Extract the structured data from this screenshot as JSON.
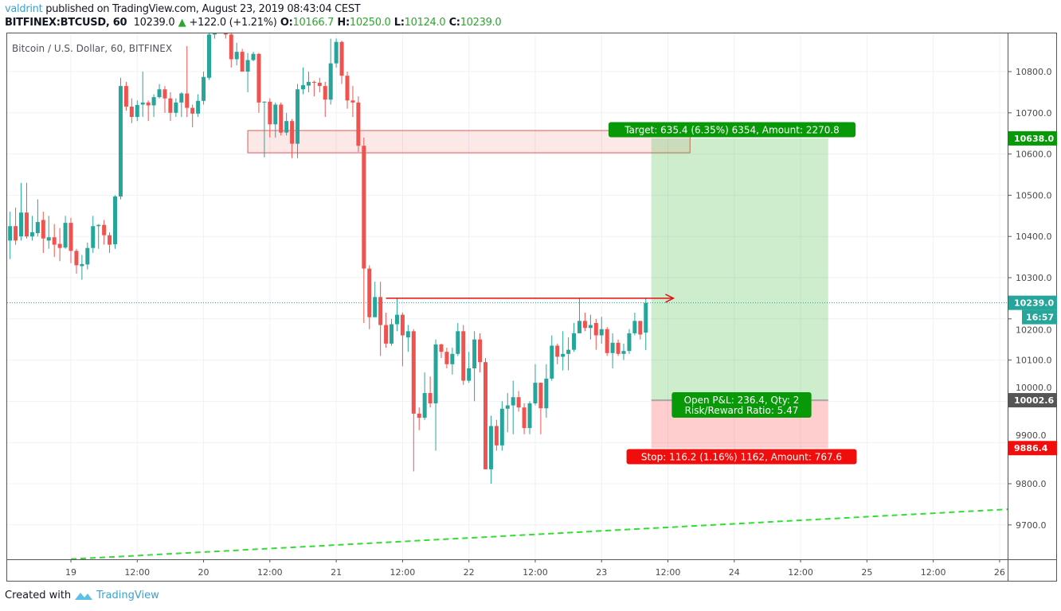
{
  "header": {
    "author": "valdrint",
    "published": "published on TradingView.com, August 23, 2019 08:43:04 CEST",
    "symbol": "BITFINEX:BTCUSD, 60",
    "last": "10239.0",
    "change": "+122.0 (+1.21%)",
    "o_label": "O:",
    "o": "10166.7",
    "h_label": "H:",
    "h": "10250.0",
    "l_label": "L:",
    "l": "10124.0",
    "c_label": "C:",
    "c": "10239.0"
  },
  "footer": {
    "created_with": "Created with",
    "brand": "TradingView"
  },
  "colors": {
    "up": "#26a69a",
    "down": "#ef5350",
    "target": "#089908",
    "stop": "#f20d0d",
    "trendline": "#33dd33",
    "zone": "#e05858",
    "arrow": "#dd1111"
  },
  "chart_data": {
    "type": "candlestick",
    "title": "Bitcoin / U.S. Dollar, 60, BITFINEX",
    "interval_minutes": 60,
    "first_candle_time": "2019-08-18 13:00",
    "ylim": [
      9620,
      10895
    ],
    "xlim": [
      "2019-08-18 12:00",
      "2019-08-26 01:00"
    ],
    "grid": true,
    "y_ticks": [
      9700,
      9800,
      9900,
      10000,
      10100,
      10200,
      10300,
      10400,
      10500,
      10600,
      10700,
      10800
    ],
    "y_tick_labels": [
      "9700.0",
      "9800.0",
      "9900.0",
      "10000.0",
      "10100.0",
      "10200.0",
      "10300.0",
      "10400.0",
      "10500.0",
      "10600.0",
      "10700.0",
      "10800.0"
    ],
    "x_ticks": [
      {
        "label": "19",
        "time": "2019-08-19 00:00"
      },
      {
        "label": "12:00",
        "time": "2019-08-19 12:00"
      },
      {
        "label": "20",
        "time": "2019-08-20 00:00"
      },
      {
        "label": "12:00",
        "time": "2019-08-20 12:00"
      },
      {
        "label": "21",
        "time": "2019-08-21 00:00"
      },
      {
        "label": "12:00",
        "time": "2019-08-21 12:00"
      },
      {
        "label": "22",
        "time": "2019-08-22 00:00"
      },
      {
        "label": "12:00",
        "time": "2019-08-22 12:00"
      },
      {
        "label": "23",
        "time": "2019-08-23 00:00"
      },
      {
        "label": "12:00",
        "time": "2019-08-23 12:00"
      },
      {
        "label": "24",
        "time": "2019-08-24 00:00"
      },
      {
        "label": "12:00",
        "time": "2019-08-24 12:00"
      },
      {
        "label": "25",
        "time": "2019-08-25 00:00"
      },
      {
        "label": "12:00",
        "time": "2019-08-25 12:00"
      },
      {
        "label": "26",
        "time": "2019-08-26 00:00"
      }
    ],
    "candles_ohlc": [
      [
        10390,
        10460,
        10345,
        10425
      ],
      [
        10425,
        10470,
        10380,
        10390
      ],
      [
        10400,
        10530,
        10390,
        10458
      ],
      [
        10458,
        10530,
        10395,
        10400
      ],
      [
        10400,
        10450,
        10390,
        10410
      ],
      [
        10408,
        10490,
        10400,
        10435
      ],
      [
        10440,
        10460,
        10360,
        10395
      ],
      [
        10390,
        10450,
        10370,
        10398
      ],
      [
        10398,
        10430,
        10350,
        10380
      ],
      [
        10382,
        10420,
        10340,
        10372
      ],
      [
        10373,
        10450,
        10370,
        10433
      ],
      [
        10433,
        10445,
        10335,
        10365
      ],
      [
        10365,
        10370,
        10310,
        10330
      ],
      [
        10328,
        10355,
        10295,
        10333
      ],
      [
        10332,
        10385,
        10320,
        10372
      ],
      [
        10372,
        10450,
        10360,
        10425
      ],
      [
        10425,
        10430,
        10370,
        10428
      ],
      [
        10428,
        10440,
        10380,
        10403
      ],
      [
        10403,
        10410,
        10360,
        10380
      ],
      [
        10381,
        10500,
        10370,
        10497
      ],
      [
        10497,
        10785,
        10490,
        10765
      ],
      [
        10765,
        10775,
        10705,
        10715
      ],
      [
        10715,
        10735,
        10675,
        10690
      ],
      [
        10690,
        10730,
        10680,
        10719
      ],
      [
        10720,
        10800,
        10690,
        10725
      ],
      [
        10725,
        10730,
        10680,
        10718
      ],
      [
        10718,
        10745,
        10690,
        10738
      ],
      [
        10738,
        10770,
        10735,
        10757
      ],
      [
        10757,
        10765,
        10700,
        10735
      ],
      [
        10735,
        10750,
        10680,
        10700
      ],
      [
        10700,
        10735,
        10690,
        10725
      ],
      [
        10725,
        10750,
        10690,
        10747
      ],
      [
        10747,
        10862,
        10690,
        10712
      ],
      [
        10712,
        10720,
        10665,
        10698
      ],
      [
        10698,
        10745,
        10690,
        10729
      ],
      [
        10729,
        10800,
        10720,
        10787
      ],
      [
        10785,
        10930,
        10780,
        10890
      ],
      [
        10890,
        10950,
        10880,
        10930
      ],
      [
        10930,
        10960,
        10900,
        10915
      ],
      [
        10915,
        10945,
        10880,
        10890
      ],
      [
        10890,
        10930,
        10810,
        10830
      ],
      [
        10830,
        10870,
        10815,
        10848
      ],
      [
        10848,
        10855,
        10800,
        10800
      ],
      [
        10800,
        10845,
        10750,
        10828
      ],
      [
        10828,
        10848,
        10825,
        10843
      ],
      [
        10843,
        10845,
        10700,
        10725
      ],
      [
        10725,
        10728,
        10592,
        10727
      ],
      [
        10727,
        10735,
        10640,
        10672
      ],
      [
        10672,
        10725,
        10640,
        10720
      ],
      [
        10720,
        10725,
        10645,
        10652
      ],
      [
        10652,
        10700,
        10645,
        10680
      ],
      [
        10680,
        10685,
        10590,
        10625
      ],
      [
        10625,
        10770,
        10590,
        10757
      ],
      [
        10757,
        10810,
        10745,
        10767
      ],
      [
        10766,
        10800,
        10750,
        10775
      ],
      [
        10775,
        10778,
        10740,
        10773
      ],
      [
        10773,
        10785,
        10750,
        10765
      ],
      [
        10765,
        10775,
        10690,
        10732
      ],
      [
        10732,
        10880,
        10720,
        10820
      ],
      [
        10820,
        10880,
        10810,
        10872
      ],
      [
        10872,
        10875,
        10770,
        10790
      ],
      [
        10790,
        10800,
        10710,
        10730
      ],
      [
        10730,
        10765,
        10690,
        10725
      ],
      [
        10725,
        10740,
        10605,
        10620
      ],
      [
        10620,
        10640,
        10190,
        10322
      ],
      [
        10322,
        10330,
        10175,
        10204
      ],
      [
        10204,
        10290,
        10205,
        10253
      ],
      [
        10253,
        10290,
        10110,
        10185
      ],
      [
        10185,
        10215,
        10130,
        10140
      ],
      [
        10140,
        10200,
        10135,
        10187
      ],
      [
        10187,
        10250,
        10170,
        10210
      ],
      [
        10210,
        10215,
        10085,
        10160
      ],
      [
        10155,
        10185,
        10120,
        10170
      ],
      [
        10170,
        10175,
        9830,
        9970
      ],
      [
        9970,
        9985,
        9930,
        9960
      ],
      [
        9960,
        10070,
        9955,
        10020
      ],
      [
        10020,
        10060,
        9985,
        9995
      ],
      [
        9995,
        10150,
        9880,
        10138
      ],
      [
        10138,
        10140,
        10105,
        10120
      ],
      [
        10120,
        10130,
        10080,
        10090
      ],
      [
        10090,
        10130,
        10065,
        10115
      ],
      [
        10115,
        10190,
        10110,
        10170
      ],
      [
        10170,
        10185,
        10040,
        10050
      ],
      [
        10050,
        10120,
        10045,
        10080
      ],
      [
        10080,
        10170,
        10000,
        10150
      ],
      [
        10150,
        10165,
        10070,
        10095
      ],
      [
        10095,
        10105,
        9835,
        9835
      ],
      [
        9835,
        9965,
        9800,
        9940
      ],
      [
        9940,
        9955,
        9880,
        9893
      ],
      [
        9893,
        10000,
        9880,
        9982
      ],
      [
        9982,
        10020,
        9925,
        9990
      ],
      [
        9990,
        10050,
        9920,
        10010
      ],
      [
        10010,
        10025,
        9975,
        9985
      ],
      [
        9985,
        9995,
        9920,
        9935
      ],
      [
        9935,
        10000,
        9920,
        9995
      ],
      [
        9995,
        10090,
        9990,
        10045
      ],
      [
        10045,
        10045,
        9920,
        9983
      ],
      [
        9983,
        10090,
        9960,
        10055
      ],
      [
        10055,
        10160,
        10050,
        10135
      ],
      [
        10135,
        10140,
        10090,
        10108
      ],
      [
        10108,
        10170,
        10075,
        10115
      ],
      [
        10115,
        10155,
        10075,
        10125
      ],
      [
        10125,
        10190,
        10120,
        10165
      ],
      [
        10165,
        10250,
        10170,
        10195
      ],
      [
        10195,
        10215,
        10170,
        10178
      ],
      [
        10178,
        10210,
        10150,
        10185
      ],
      [
        10190,
        10200,
        10125,
        10160
      ],
      [
        10160,
        10205,
        10140,
        10175
      ],
      [
        10175,
        10180,
        10110,
        10117
      ],
      [
        10117,
        10165,
        10080,
        10142
      ],
      [
        10142,
        10150,
        10110,
        10115
      ],
      [
        10115,
        10140,
        10100,
        10122
      ],
      [
        10122,
        10175,
        10115,
        10165
      ],
      [
        10165,
        10215,
        10160,
        10195
      ],
      [
        10195,
        10195,
        10150,
        10162
      ],
      [
        10166.7,
        10250,
        10124,
        10239
      ]
    ],
    "last_price": {
      "value": 10239.0,
      "label": "10239.0",
      "countdown": "16:57"
    },
    "resistance_zone": {
      "top": 10657,
      "bottom": 10603,
      "from": "2019-08-20 08:00",
      "to": "2019-08-23 16:00"
    },
    "arrow_line": {
      "price": 10250,
      "from": "2019-08-21 09:00",
      "to": "2019-08-23 13:00"
    },
    "trendline": {
      "from": {
        "time": "2019-08-19 00:00",
        "price": 9617
      },
      "to": {
        "time": "2019-08-26 01:30",
        "price": 9738
      },
      "style": "dashed"
    },
    "long_position": {
      "entry": 10002.6,
      "target": 10638.0,
      "stop": 9886.4,
      "from": "2019-08-23 09:00",
      "to": "2019-08-24 17:00",
      "entry_label": "10002.6",
      "target_label": "10638.0",
      "stop_label": "9886.4",
      "target_text": "Target: 635.4 (6.35%) 6354, Amount: 2270.8",
      "pnl_text": "Open P&L: 236.4, Qty: 2",
      "rr_text": "Risk/Reward Ratio: 5.47",
      "stop_text": "Stop: 116.2 (1.16%) 1162, Amount: 767.6"
    }
  }
}
